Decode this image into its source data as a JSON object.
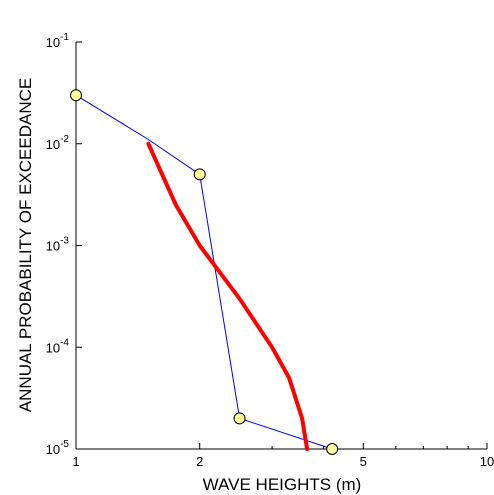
{
  "chart_data": {
    "type": "line",
    "title": "",
    "xlabel": "WAVE HEIGHTS (m)",
    "ylabel": "ANNUAL PROBABILITY OF EXCEEDANCE",
    "x_scale": "log",
    "y_scale": "log",
    "xlim": [
      1,
      10
    ],
    "ylim": [
      1e-05,
      0.1
    ],
    "x_ticks": [
      {
        "value": 1,
        "label": "1"
      },
      {
        "value": 2,
        "label": "2"
      },
      {
        "value": 5,
        "label": "5"
      },
      {
        "value": 10,
        "label": "10"
      }
    ],
    "y_ticks": [
      {
        "value": 1e-05,
        "base": "10",
        "exp": "-5"
      },
      {
        "value": 0.0001,
        "base": "10",
        "exp": "-4"
      },
      {
        "value": 0.001,
        "base": "10",
        "exp": "-3"
      },
      {
        "value": 0.01,
        "base": "10",
        "exp": "-2"
      },
      {
        "value": 0.1,
        "base": "10",
        "exp": "-1"
      }
    ],
    "grid": false,
    "series": [
      {
        "color": "#0000ff",
        "markers": "circle",
        "marker_fill": "#ffff99",
        "points": [
          {
            "x": 1.0,
            "y": 0.03,
            "marker": true
          },
          {
            "x": 1.5,
            "y": 0.011,
            "marker": false
          },
          {
            "x": 2.0,
            "y": 0.005,
            "marker": true
          },
          {
            "x": 2.5,
            "y": 2e-05,
            "marker": true
          },
          {
            "x": 4.2,
            "y": 1e-05,
            "marker": true
          }
        ]
      },
      {
        "color": "#ff0000",
        "markers": "none",
        "points": [
          {
            "x": 1.5,
            "y": 0.01
          },
          {
            "x": 1.75,
            "y": 0.0025
          },
          {
            "x": 2.0,
            "y": 0.001
          },
          {
            "x": 2.5,
            "y": 0.0003
          },
          {
            "x": 3.0,
            "y": 0.0001
          },
          {
            "x": 3.3,
            "y": 5e-05
          },
          {
            "x": 3.55,
            "y": 2e-05
          },
          {
            "x": 3.65,
            "y": 1e-05
          }
        ]
      }
    ]
  }
}
